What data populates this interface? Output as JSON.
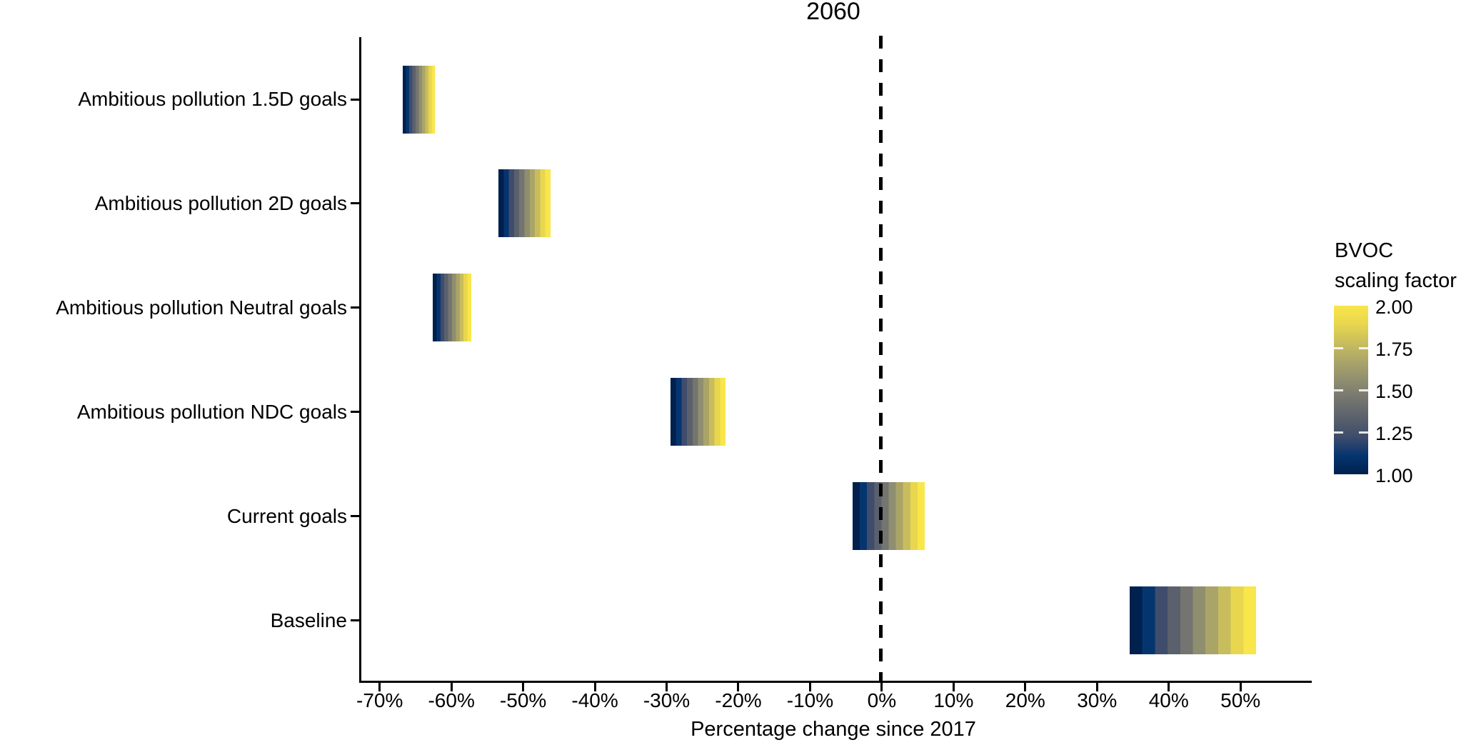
{
  "title": "2060",
  "x_axis": {
    "label": "Percentage change since 2017",
    "ticks": [
      {
        "label": "-70%",
        "value": -70
      },
      {
        "label": "-60%",
        "value": -60
      },
      {
        "label": "-50%",
        "value": -50
      },
      {
        "label": "-40%",
        "value": -40
      },
      {
        "label": "-30%",
        "value": -30
      },
      {
        "label": "-20%",
        "value": -20
      },
      {
        "label": "-10%",
        "value": -10
      },
      {
        "label": "0%",
        "value": 0
      },
      {
        "label": "10%",
        "value": 10
      },
      {
        "label": "20%",
        "value": 20
      },
      {
        "label": "30%",
        "value": 30
      },
      {
        "label": "40%",
        "value": 40
      },
      {
        "label": "50%",
        "value": 50
      }
    ]
  },
  "y_axis": {
    "categories": [
      "Ambitious pollution 1.5D goals",
      "Ambitious pollution 2D goals",
      "Ambitious pollution Neutral goals",
      "Ambitious pollution NDC goals",
      "Current goals",
      "Baseline"
    ]
  },
  "legend": {
    "title_line1": "BVOC",
    "title_line2": "scaling factor",
    "labels": [
      "2.00",
      "1.75",
      "1.50",
      "1.25",
      "1.00"
    ],
    "min": 1.0,
    "max": 2.0
  },
  "reference_line": {
    "value": 0,
    "style": "dashed",
    "color": "#000000"
  },
  "chart_data": {
    "type": "bar",
    "subtype": "horizontal-range-gradient",
    "title": "2060",
    "xlabel": "Percentage change since 2017",
    "xlim": [
      -75,
      58
    ],
    "categories": [
      "Ambitious pollution 1.5D goals",
      "Ambitious pollution 2D goals",
      "Ambitious pollution Neutral goals",
      "Ambitious pollution NDC goals",
      "Current goals",
      "Baseline"
    ],
    "series": [
      {
        "name": "Ambitious pollution 1.5D goals",
        "from_pct": -66.8,
        "to_pct": -62.3
      },
      {
        "name": "Ambitious pollution 2D goals",
        "from_pct": -53.4,
        "to_pct": -46.2
      },
      {
        "name": "Ambitious pollution Neutral goals",
        "from_pct": -62.6,
        "to_pct": -57.2
      },
      {
        "name": "Ambitious pollution NDC goals",
        "from_pct": -29.5,
        "to_pct": -21.8
      },
      {
        "name": "Current goals",
        "from_pct": -4.1,
        "to_pct": 6.0
      },
      {
        "name": "Baseline",
        "from_pct": 34.6,
        "to_pct": 52.2
      }
    ],
    "color_scale": {
      "name": "cividis",
      "legend_title": "BVOC scaling factor",
      "domain": [
        1.0,
        2.0
      ],
      "n_levels": 10,
      "palette": [
        "#00204d",
        "#05356f",
        "#3f4c6b",
        "#5a616c",
        "#747570",
        "#8f8e6f",
        "#aaa469",
        "#c8bd5d",
        "#e8d64f",
        "#f9e64a"
      ]
    },
    "reference_line_x": 0,
    "grid": false,
    "legend_position": "right"
  }
}
